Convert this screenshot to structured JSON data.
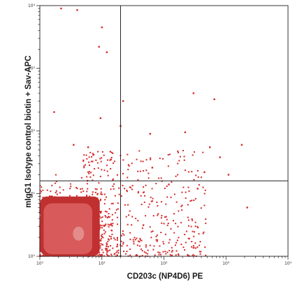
{
  "chart_data": {
    "type": "scatter",
    "title": "",
    "xlabel": "CD203c (NP4D6) PE",
    "ylabel": "mIgG1 Isotype control biotin + Sav-APC",
    "x_scale": "log",
    "y_scale": "log",
    "xlim": [
      1,
      10000
    ],
    "ylim": [
      1,
      10000
    ],
    "x_ticks": [
      "10⁰",
      "10¹",
      "10²",
      "10³",
      "10⁴"
    ],
    "y_ticks": [
      "10⁰",
      "10¹",
      "10²",
      "10³",
      "10⁴"
    ],
    "quadrant_gate": {
      "x": 20,
      "y": 16
    },
    "grid": false,
    "colors": {
      "points": "#d42a2a",
      "dense_core": "#c03030",
      "density_bulk": "#d85a5a",
      "gate": "#222222",
      "frame": "#333333"
    },
    "populations": [
      {
        "name": "main",
        "center": [
          2.5,
          2.4
        ],
        "extent_x": [
          1,
          10
        ],
        "extent_y": [
          1,
          10
        ]
      },
      {
        "name": "scatter_tail",
        "x_range": [
          5,
          500
        ],
        "y_range": [
          1,
          50
        ]
      }
    ],
    "outlier_points": [
      [
        4,
        8500
      ],
      [
        2.2,
        9000
      ],
      [
        10,
        4500
      ],
      [
        9,
        2200
      ],
      [
        12,
        1800
      ],
      [
        22,
        300
      ],
      [
        1.7,
        200
      ],
      [
        9.5,
        160
      ],
      [
        60,
        90
      ],
      [
        20,
        120
      ],
      [
        300,
        400
      ],
      [
        650,
        320
      ],
      [
        220,
        95
      ],
      [
        1800,
        60
      ],
      [
        550,
        55
      ],
      [
        3.5,
        60
      ],
      [
        6,
        55
      ],
      [
        14,
        35
      ],
      [
        800,
        38
      ],
      [
        450,
        22
      ],
      [
        1100,
        20
      ],
      [
        2200,
        6
      ],
      [
        65,
        26
      ],
      [
        120,
        14
      ],
      [
        350,
        12
      ]
    ]
  }
}
